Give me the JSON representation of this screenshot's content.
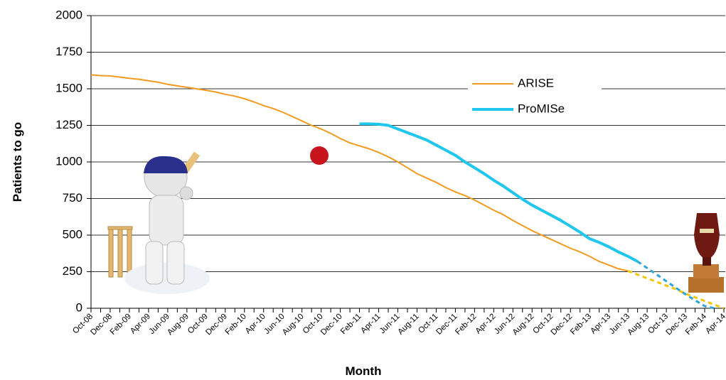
{
  "chart_data": {
    "type": "line",
    "ylabel": "Patients to go",
    "xlabel": "Month",
    "categories": [
      "Oct-08",
      null,
      "Dec-08",
      null,
      "Feb-09",
      null,
      "Apr-09",
      null,
      "Jun-09",
      null,
      "Aug-09",
      null,
      "Oct-09",
      null,
      "Dec-09",
      null,
      "Feb-10",
      null,
      "Apr-10",
      null,
      "Jun-10",
      null,
      "Aug-10",
      null,
      "Oct-10",
      null,
      "Dec-10",
      null,
      "Feb-11",
      null,
      "Apr-11",
      null,
      "Jun-11",
      null,
      "Aug-11",
      null,
      "Oct-11",
      null,
      "Dec-11",
      null,
      "Feb-12",
      null,
      "Apr-12",
      null,
      "Jun-12",
      null,
      "Aug-12",
      null,
      "Oct-12",
      null,
      "Dec-12",
      null,
      "Feb-13",
      null,
      "Apr-13",
      null,
      "Jun-13",
      null,
      "Aug-13",
      null,
      "Oct-13",
      null,
      "Dec-13",
      null,
      "Feb-14",
      null,
      "Apr-14"
    ],
    "series": [
      {
        "name": "ARISE",
        "color": "#f39a1e",
        "width": 2,
        "values": [
          1595,
          1590,
          1588,
          1580,
          1572,
          1565,
          1555,
          1545,
          1530,
          1520,
          1510,
          1500,
          1490,
          1478,
          1462,
          1450,
          1432,
          1410,
          1385,
          1365,
          1340,
          1310,
          1280,
          1250,
          1225,
          1195,
          1160,
          1130,
          1110,
          1090,
          1065,
          1035,
          1000,
          960,
          920,
          890,
          860,
          825,
          795,
          770,
          740,
          705,
          670,
          640,
          600,
          565,
          530,
          500,
          470,
          440,
          410,
          385,
          355,
          320,
          295,
          270,
          255,
          null,
          null,
          null,
          null,
          null,
          null,
          null,
          null,
          null,
          null
        ]
      },
      {
        "color": "#f5c400",
        "width": 3,
        "dashed": true,
        "values": [
          null,
          null,
          null,
          null,
          null,
          null,
          null,
          null,
          null,
          null,
          null,
          null,
          null,
          null,
          null,
          null,
          null,
          null,
          null,
          null,
          null,
          null,
          null,
          null,
          null,
          null,
          null,
          null,
          null,
          null,
          null,
          null,
          null,
          null,
          null,
          null,
          null,
          null,
          null,
          null,
          null,
          null,
          null,
          null,
          null,
          null,
          null,
          null,
          null,
          null,
          null,
          null,
          null,
          null,
          null,
          null,
          255,
          230,
          205,
          180,
          155,
          130,
          100,
          75,
          50,
          25,
          0
        ]
      },
      {
        "name": "ProMISe",
        "color": "#1ec6f0",
        "width": 4,
        "values": [
          null,
          null,
          null,
          null,
          null,
          null,
          null,
          null,
          null,
          null,
          null,
          null,
          null,
          null,
          null,
          null,
          null,
          null,
          null,
          null,
          null,
          null,
          null,
          null,
          null,
          null,
          null,
          null,
          1260,
          1260,
          1258,
          1250,
          1225,
          1200,
          1175,
          1150,
          1115,
          1080,
          1045,
          1000,
          960,
          920,
          875,
          835,
          790,
          745,
          705,
          670,
          635,
          600,
          560,
          520,
          475,
          450,
          420,
          385,
          355,
          320,
          null,
          null,
          null,
          null,
          null,
          null,
          null,
          null,
          null
        ]
      },
      {
        "color": "#2ba3dc",
        "width": 3,
        "dashed": true,
        "values": [
          null,
          null,
          null,
          null,
          null,
          null,
          null,
          null,
          null,
          null,
          null,
          null,
          null,
          null,
          null,
          null,
          null,
          null,
          null,
          null,
          null,
          null,
          null,
          null,
          null,
          null,
          null,
          null,
          null,
          null,
          null,
          null,
          null,
          null,
          null,
          null,
          null,
          null,
          null,
          null,
          null,
          null,
          null,
          null,
          null,
          null,
          null,
          null,
          null,
          null,
          null,
          null,
          null,
          null,
          null,
          null,
          null,
          320,
          275,
          230,
          185,
          140,
          95,
          55,
          15,
          0,
          null
        ]
      }
    ],
    "ylim": [
      0,
      2000
    ],
    "yticks": [
      0,
      250,
      500,
      750,
      1000,
      1250,
      1500,
      1750,
      2000
    ],
    "grid": true
  }
}
